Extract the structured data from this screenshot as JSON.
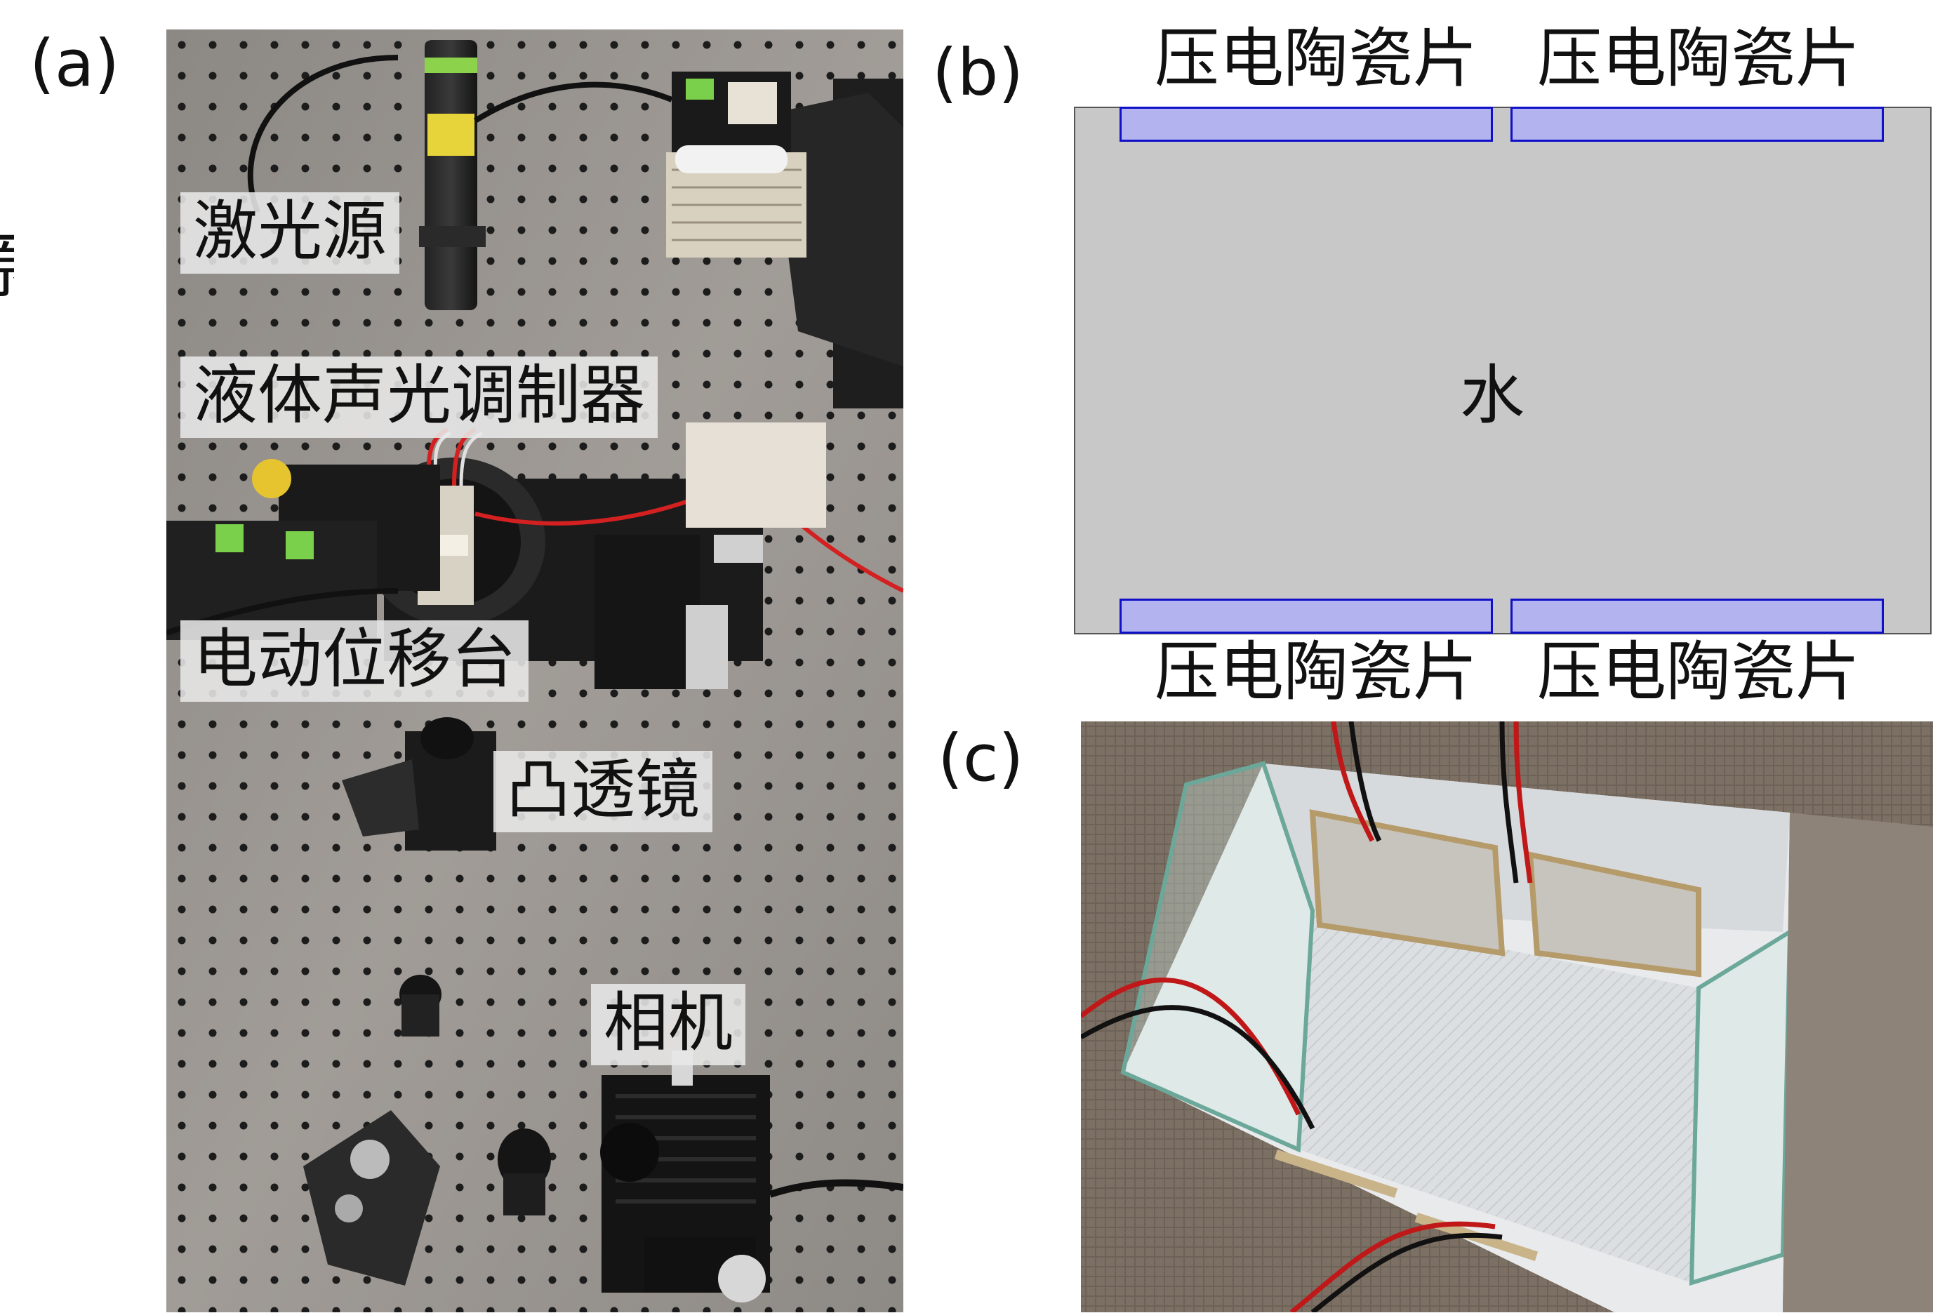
{
  "figure": {
    "stray_glyph": "源",
    "panel_a": {
      "label": "(a)",
      "components": {
        "laser_source": "激光源",
        "liquid_aom": "液体声光调制器",
        "motorized_stage": "电动位移台",
        "convex_lens": "凸透镜",
        "camera": "相机"
      }
    },
    "panel_b": {
      "label": "(b)",
      "piezo_top_left": "压电陶瓷片",
      "piezo_top_right": "压电陶瓷片",
      "piezo_bottom_left": "压电陶瓷片",
      "piezo_bottom_right": "压电陶瓷片",
      "medium": "水",
      "colors": {
        "chamber_fill": "#c8c8c8",
        "piezo_fill": "#b3b3f0",
        "piezo_stroke": "#1010c8"
      }
    },
    "panel_c": {
      "label": "(c)"
    }
  }
}
